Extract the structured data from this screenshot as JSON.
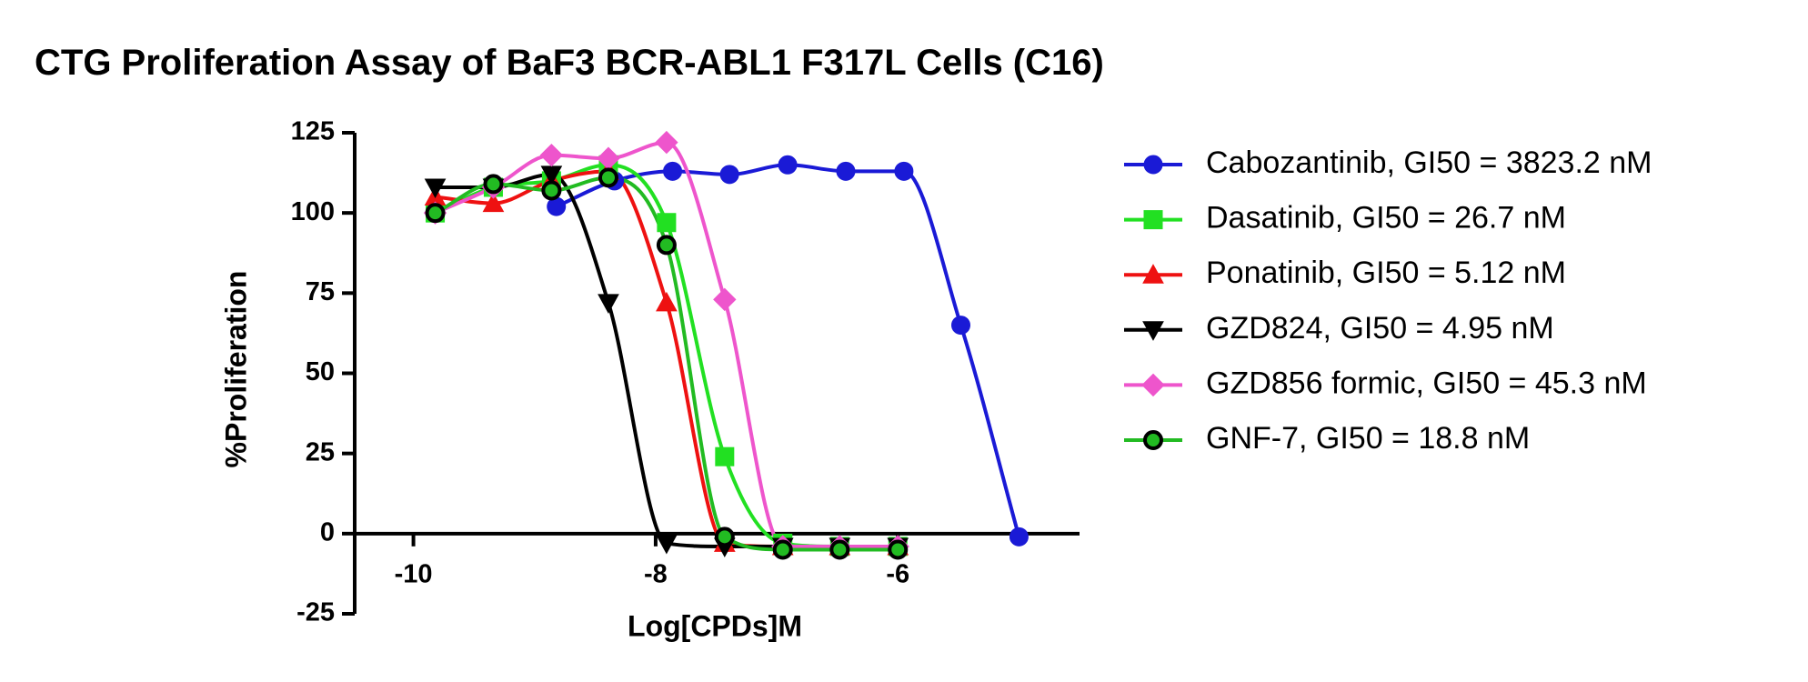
{
  "chart_data": {
    "type": "scatter",
    "title": "CTG Proliferation Assay of BaF3 BCR-ABL1 F317L Cells (C16)",
    "x_label": "Log[CPDs]M",
    "y_label": "%Proliferation",
    "xlim": [
      -10.5,
      -4.5
    ],
    "xticks": [
      -10,
      -8,
      -6
    ],
    "ylim": [
      -25,
      125
    ],
    "yticks": [
      125,
      100,
      75,
      50,
      25,
      0,
      -25
    ],
    "series": [
      {
        "name": "Cabozantinib, GI50 = 3823.2 nM",
        "color": "#1a1ad6",
        "marker": "circle",
        "x": [
          -8.82,
          -8.34,
          -7.86,
          -7.39,
          -6.91,
          -6.43,
          -5.95,
          -5.48,
          -5.0
        ],
        "values": [
          102,
          110,
          113,
          112,
          115,
          113,
          113,
          65,
          -1
        ]
      },
      {
        "name": "Dasatinib, GI50 = 26.7 nM",
        "color": "#22e022",
        "marker": "square",
        "x": [
          -9.82,
          -9.34,
          -8.86,
          -8.39,
          -7.91,
          -7.43,
          -6.95,
          -6.48,
          -6.0
        ],
        "values": [
          100,
          108,
          110,
          115,
          97,
          24,
          -3,
          -4,
          -4
        ]
      },
      {
        "name": "Ponatinib, GI50 = 5.12 nM",
        "color": "#ee1111",
        "marker": "triangle",
        "x": [
          -9.82,
          -9.34,
          -8.86,
          -8.39,
          -7.91,
          -7.43,
          -6.95,
          -6.48,
          -6.0
        ],
        "values": [
          105,
          103,
          110,
          113,
          72,
          -3,
          -4,
          -4,
          -4
        ]
      },
      {
        "name": "GZD824, GI50 = 4.95 nM",
        "color": "#000000",
        "marker": "triangle-down",
        "x": [
          -9.82,
          -9.34,
          -8.86,
          -8.39,
          -7.91,
          -7.43,
          -6.95,
          -6.48,
          -6.0
        ],
        "values": [
          108,
          108,
          112,
          72,
          -3,
          -4,
          -4,
          -4,
          -4
        ]
      },
      {
        "name": "GZD856 formic, GI50 = 45.3 nM",
        "color": "#ee55cc",
        "marker": "diamond",
        "x": [
          -9.82,
          -9.34,
          -8.86,
          -8.39,
          -7.91,
          -7.43,
          -6.95,
          -6.48,
          -6.0
        ],
        "values": [
          100,
          108,
          118,
          117,
          122,
          73,
          -4,
          -4,
          -4
        ]
      },
      {
        "name": "GNF-7, GI50 = 18.8 nM",
        "color": "#22bb22",
        "edgecolor": "#000000",
        "marker": "circle",
        "x": [
          -9.82,
          -9.34,
          -8.86,
          -8.39,
          -7.91,
          -7.43,
          -6.95,
          -6.48,
          -6.0
        ],
        "values": [
          100,
          109,
          107,
          111,
          90,
          -1,
          -5,
          -5,
          -5
        ]
      }
    ]
  }
}
